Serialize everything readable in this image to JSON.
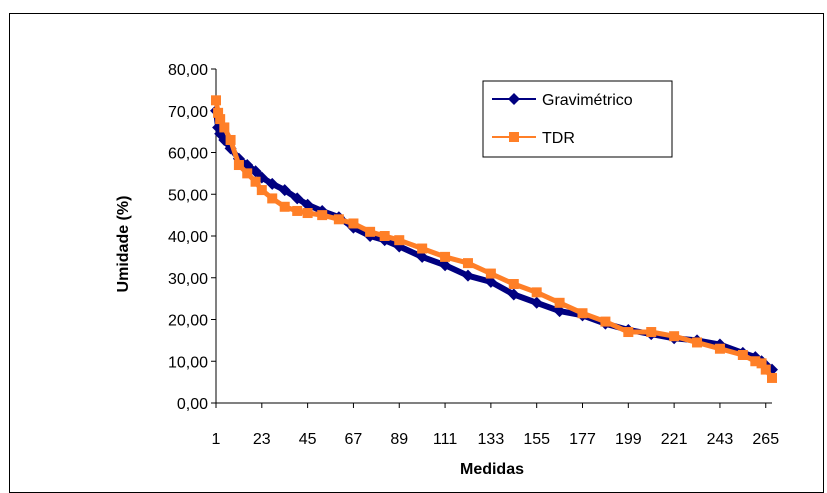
{
  "chart_data": {
    "type": "line",
    "title": "",
    "xlabel": "Medidas",
    "ylabel": "Umidade (%)",
    "xlim": [
      1,
      268
    ],
    "ylim": [
      0,
      80
    ],
    "y_ticks": [
      "0,00",
      "10,00",
      "20,00",
      "30,00",
      "40,00",
      "50,00",
      "60,00",
      "70,00",
      "80,00"
    ],
    "x_ticks": [
      "1",
      "23",
      "45",
      "67",
      "89",
      "111",
      "133",
      "155",
      "177",
      "199",
      "221",
      "243",
      "265"
    ],
    "grid": false,
    "legend_position": "top-right",
    "x": [
      1,
      2,
      3,
      5,
      8,
      12,
      16,
      20,
      23,
      28,
      34,
      40,
      45,
      52,
      60,
      67,
      75,
      82,
      89,
      100,
      111,
      122,
      133,
      144,
      155,
      166,
      177,
      188,
      199,
      210,
      221,
      232,
      243,
      254,
      260,
      263,
      265,
      268
    ],
    "series": [
      {
        "name": "Gravimétrico",
        "color": "#000080",
        "marker": "diamond",
        "values": [
          70,
          66,
          64.5,
          63,
          61,
          58.5,
          57,
          55.5,
          54,
          52.5,
          51,
          49,
          47.5,
          46,
          44.5,
          42,
          40,
          39,
          37.5,
          35,
          33,
          30.5,
          29,
          26,
          24,
          22,
          21,
          19,
          17.5,
          16.5,
          15.5,
          15,
          14,
          12,
          11,
          10,
          9,
          8
        ]
      },
      {
        "name": "TDR",
        "color": "#ff7f27",
        "marker": "square",
        "values": [
          72.5,
          69.5,
          68,
          66,
          63,
          57,
          55,
          53,
          51,
          49,
          47,
          46,
          45.5,
          45,
          44,
          43,
          41,
          40,
          39,
          37,
          35,
          33.5,
          31,
          28.5,
          26.5,
          24,
          21.5,
          19.5,
          17,
          17,
          16,
          14.5,
          13,
          11.5,
          10,
          9.5,
          8,
          6
        ]
      }
    ]
  }
}
